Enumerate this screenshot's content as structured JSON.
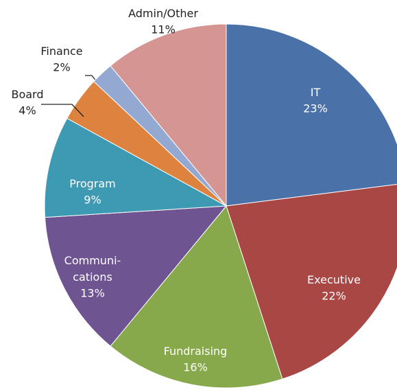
{
  "chart_data": {
    "type": "pie",
    "categories": [
      "IT",
      "Executive",
      "Fundraising",
      "Communi-\ncations",
      "Program",
      "Board",
      "Finance",
      "Admin/Other"
    ],
    "values": [
      23,
      22,
      16,
      13,
      9,
      4,
      2,
      11
    ],
    "value_labels": [
      "23%",
      "22%",
      "16%",
      "13%",
      "9%",
      "4%",
      "2%",
      "11%"
    ],
    "colors": [
      "#4a72a8",
      "#a94745",
      "#88a84c",
      "#6e5592",
      "#3e9ab2",
      "#dd833f",
      "#93a9d2",
      "#d49593"
    ]
  }
}
